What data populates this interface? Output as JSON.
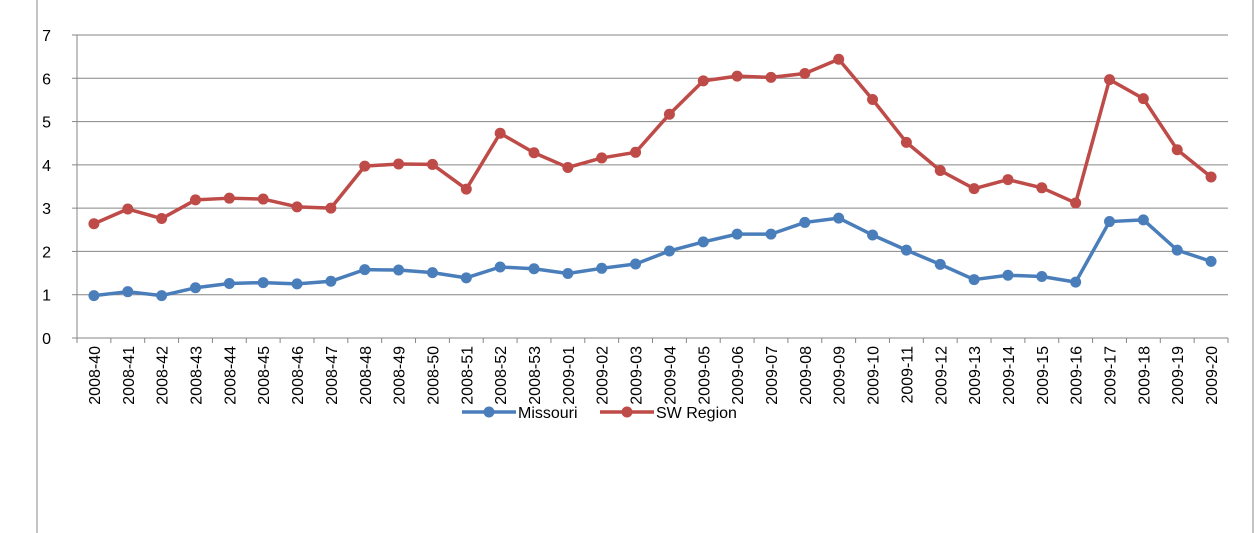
{
  "chart_data": {
    "type": "line",
    "categories": [
      "2008-40",
      "2008-41",
      "2008-42",
      "2008-43",
      "2008-44",
      "2008-45",
      "2008-46",
      "2008-47",
      "2008-48",
      "2008-49",
      "2008-50",
      "2008-51",
      "2008-52",
      "2008-53",
      "2009-01",
      "2009-02",
      "2009-03",
      "2009-04",
      "2009-05",
      "2009-06",
      "2009-07",
      "2009-08",
      "2009-09",
      "2009-10",
      "2009-11",
      "2009-12",
      "2009-13",
      "2009-14",
      "2009-15",
      "2009-16",
      "2009-17",
      "2009-18",
      "2009-19",
      "2009-20"
    ],
    "series": [
      {
        "name": "Missouri",
        "color": "#4a7ebb",
        "values": [
          0.98,
          1.07,
          0.98,
          1.16,
          1.26,
          1.28,
          1.25,
          1.31,
          1.58,
          1.57,
          1.51,
          1.39,
          1.64,
          1.6,
          1.49,
          1.61,
          1.71,
          2.01,
          2.22,
          2.4,
          2.4,
          2.67,
          2.77,
          2.38,
          2.03,
          1.7,
          1.35,
          1.45,
          1.42,
          1.29,
          2.69,
          2.73,
          2.03,
          1.77
        ]
      },
      {
        "name": "SW Region",
        "color": "#be4b48",
        "values": [
          2.64,
          2.98,
          2.76,
          3.19,
          3.23,
          3.21,
          3.03,
          3.0,
          3.97,
          4.02,
          4.01,
          3.44,
          4.73,
          4.28,
          3.94,
          4.16,
          4.29,
          5.17,
          5.94,
          6.05,
          6.02,
          6.11,
          6.44,
          5.51,
          4.52,
          3.87,
          3.45,
          3.66,
          3.47,
          3.12,
          5.97,
          5.53,
          4.35,
          3.72
        ]
      }
    ],
    "ylim": [
      0,
      7
    ],
    "yticks": [
      0,
      1,
      2,
      3,
      4,
      5,
      6,
      7
    ],
    "grid": true,
    "legend": "bottom"
  }
}
